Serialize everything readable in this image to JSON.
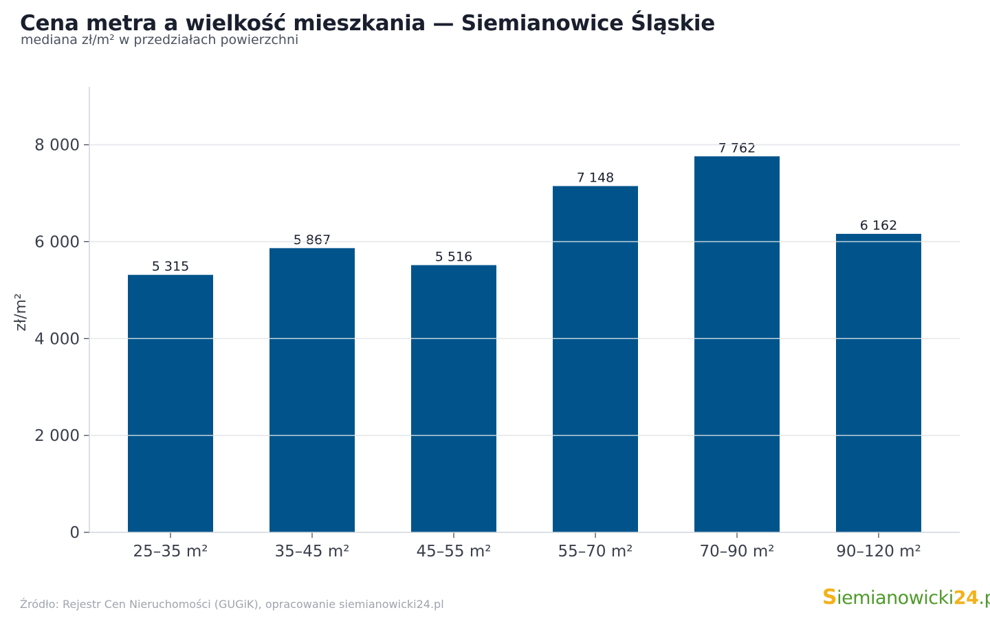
{
  "header": {
    "title": "Cena metra a wielkość mieszkania — Siemianowice Śląskie",
    "subtitle": "mediana zł/m² w przedziałach powierzchni"
  },
  "footer": {
    "source": "Źródło: Rejestr Cen Nieruchomości (GUGiK), opracowanie siemianowicki24.pl",
    "logo_s": "S",
    "logo_main": "iemianowicki",
    "logo_num": "24",
    "logo_tld": ".pl"
  },
  "colors": {
    "bar": "#00548c",
    "grid": "#e5e7eb",
    "axis": "#d1d5db",
    "tick_text": "#3a3f4b",
    "label_text": "#1a1f2e"
  },
  "chart_data": {
    "type": "bar",
    "title": "Cena metra a wielkość mieszkania — Siemianowice Śląskie",
    "subtitle": "mediana zł/m² w przedziałach powierzchni",
    "xlabel": "",
    "ylabel": "zł/m²",
    "categories": [
      "25–35 m²",
      "35–45 m²",
      "45–55 m²",
      "55–70 m²",
      "70–90 m²",
      "90–120 m²"
    ],
    "values": [
      5315,
      5867,
      5516,
      7148,
      7762,
      6162
    ],
    "value_labels": [
      "5 315",
      "5 867",
      "5 516",
      "7 148",
      "7 762",
      "6 162"
    ],
    "ylim": [
      0,
      9200
    ],
    "yticks": [
      0,
      2000,
      4000,
      6000,
      8000
    ],
    "ytick_labels": [
      "0",
      "2 000",
      "4 000",
      "6 000",
      "8 000"
    ],
    "grid": true,
    "legend": "none"
  }
}
